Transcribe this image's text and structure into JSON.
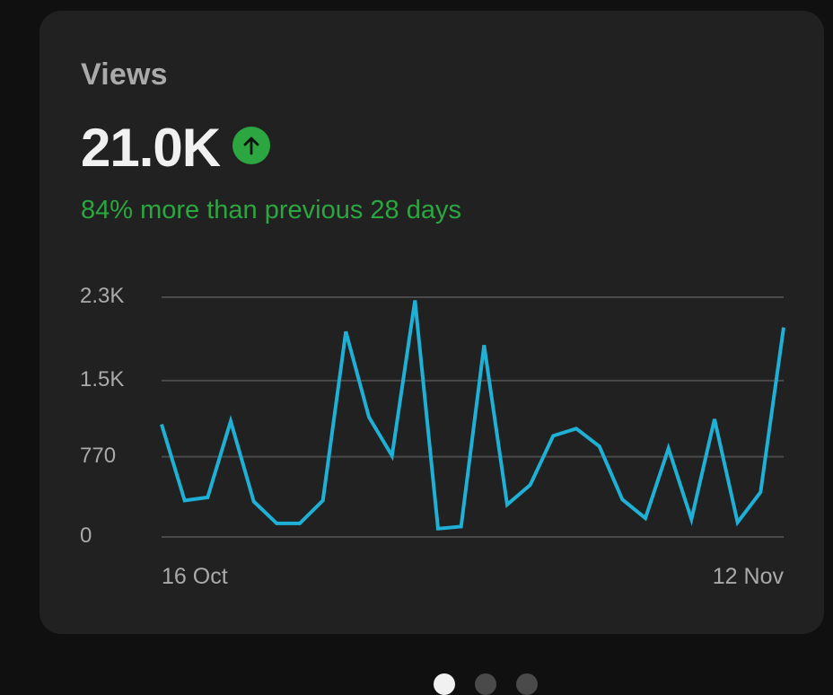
{
  "card": {
    "title": "Views",
    "value": "21.0K",
    "trend_icon": "arrow-up-icon",
    "delta_text": "84% more than previous 28 days",
    "colors": {
      "background": "#212121",
      "accent_positive": "#2ba640",
      "line": "#1fb0d6",
      "grid": "#4a4a4a",
      "label": "#aaaaaa"
    }
  },
  "chart_data": {
    "type": "line",
    "title": "Views",
    "xlabel": "",
    "ylabel": "",
    "ylim": [
      0,
      2300
    ],
    "y_ticks": [
      "0",
      "770",
      "1.5K",
      "2.3K"
    ],
    "y_tick_values": [
      0,
      770,
      1500,
      2300
    ],
    "x_tick_labels": [
      "16 Oct",
      "12 Nov"
    ],
    "grid": true,
    "legend": "none",
    "x": [
      "16 Oct",
      "17 Oct",
      "18 Oct",
      "19 Oct",
      "20 Oct",
      "21 Oct",
      "22 Oct",
      "23 Oct",
      "24 Oct",
      "25 Oct",
      "26 Oct",
      "27 Oct",
      "28 Oct",
      "29 Oct",
      "30 Oct",
      "31 Oct",
      "1 Nov",
      "2 Nov",
      "3 Nov",
      "4 Nov",
      "5 Nov",
      "6 Nov",
      "7 Nov",
      "8 Nov",
      "9 Nov",
      "10 Nov",
      "11 Nov",
      "12 Nov"
    ],
    "series": [
      {
        "name": "Views",
        "values": [
          1080,
          350,
          380,
          1110,
          340,
          130,
          130,
          350,
          1970,
          1150,
          780,
          2270,
          80,
          100,
          1840,
          310,
          500,
          970,
          1040,
          870,
          360,
          180,
          850,
          170,
          1130,
          140,
          430,
          2010
        ]
      }
    ]
  },
  "pagination": {
    "pages": 3,
    "active_index": 0
  }
}
